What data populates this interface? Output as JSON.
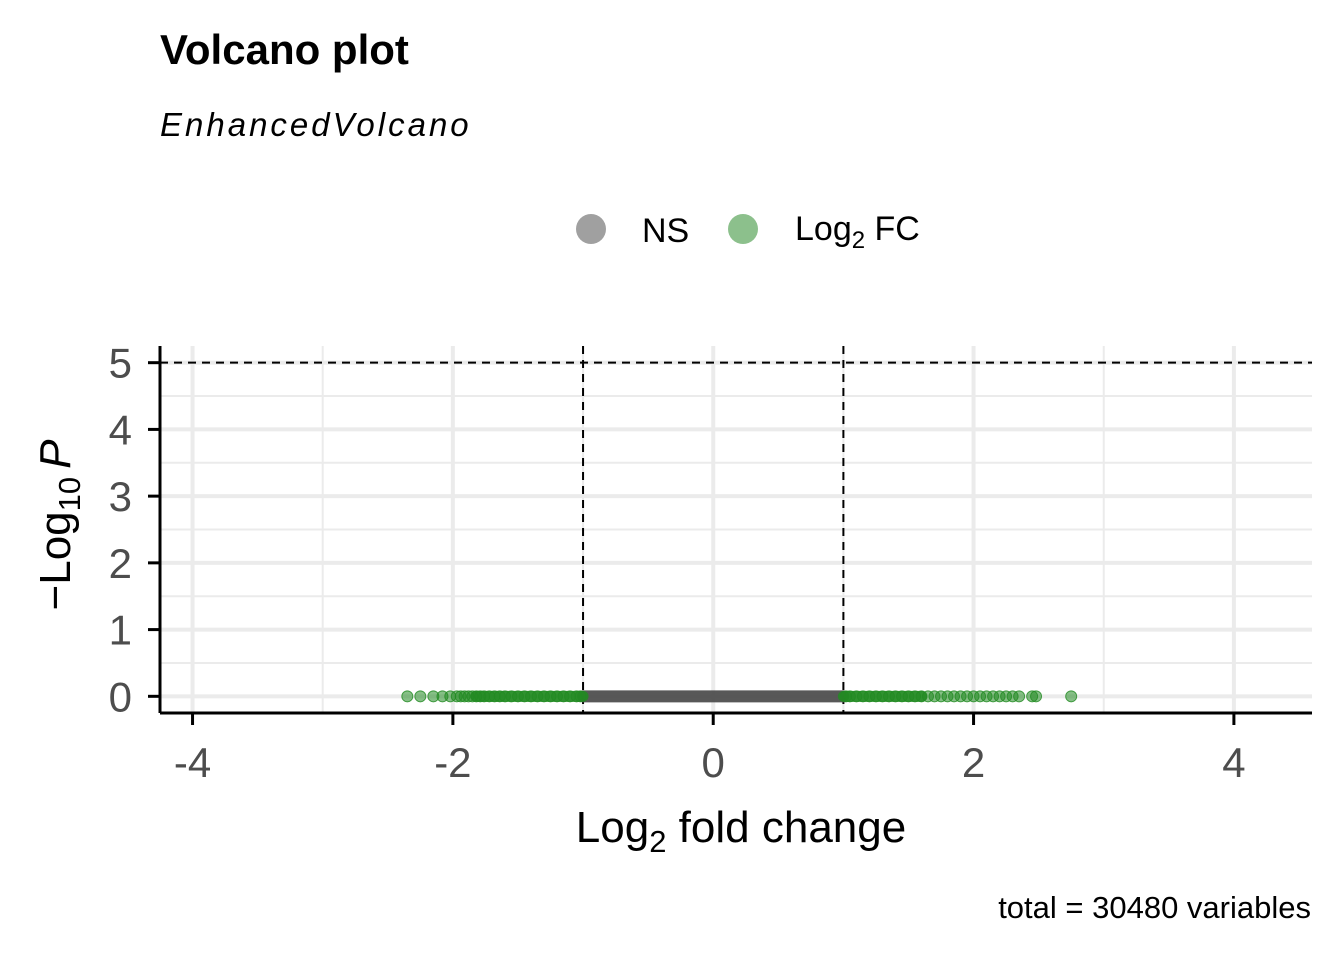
{
  "title": "Volcano plot",
  "subtitle": "EnhancedVolcano",
  "caption": "total = 30480 variables",
  "legend": [
    {
      "label": "NS",
      "color": "#a0a0a0"
    },
    {
      "label": "Log",
      "sub": "2",
      "suffix": " FC",
      "color": "#8cc08c"
    }
  ],
  "chart_data": {
    "type": "scatter",
    "xlabel": {
      "main": "Log",
      "sub": "2",
      "rest": " fold change"
    },
    "ylabel": {
      "prefix": "−Log",
      "sub": "10",
      "italic": "P"
    },
    "xlim": [
      -4.25,
      4.6
    ],
    "ylim": [
      -0.25,
      5.25
    ],
    "x_ticks": [
      -4,
      -2,
      0,
      2,
      4
    ],
    "x_tick_labels": [
      "-4",
      "-2",
      "0",
      "2",
      "4"
    ],
    "y_ticks": [
      0,
      1,
      2,
      3,
      4,
      5
    ],
    "y_tick_labels": [
      "0",
      "1",
      "2",
      "3",
      "4",
      "5"
    ],
    "fc_cutoff": 1,
    "p_cutoff_log10": 5,
    "grid": true,
    "legend_position": "top",
    "series": [
      {
        "name": "NS",
        "color": "#505050",
        "x_range": [
          -1,
          1
        ],
        "y": 0
      },
      {
        "name": "Log2 FC",
        "color": "#228b22",
        "x": [
          -2.35,
          -2.25,
          -2.15,
          -2.08,
          -2.02,
          -1.97,
          -1.94,
          -1.91,
          -1.88,
          -1.85,
          -1.82,
          -1.79,
          -1.76,
          -1.72,
          -1.68,
          -1.64,
          -1.6,
          -1.55,
          -1.5,
          -1.45,
          -1.4,
          -1.35,
          -1.3,
          -1.25,
          -1.2,
          -1.15,
          -1.1,
          -1.05,
          -1.02,
          1.02,
          1.05,
          1.1,
          1.15,
          1.2,
          1.25,
          1.3,
          1.35,
          1.4,
          1.45,
          1.5,
          1.55,
          1.6,
          1.65,
          1.7,
          1.75,
          1.8,
          1.85,
          1.9,
          1.95,
          2.0,
          2.05,
          2.1,
          2.15,
          2.2,
          2.25,
          2.3,
          2.35,
          2.45,
          2.48,
          2.75
        ],
        "y": 0
      }
    ]
  }
}
